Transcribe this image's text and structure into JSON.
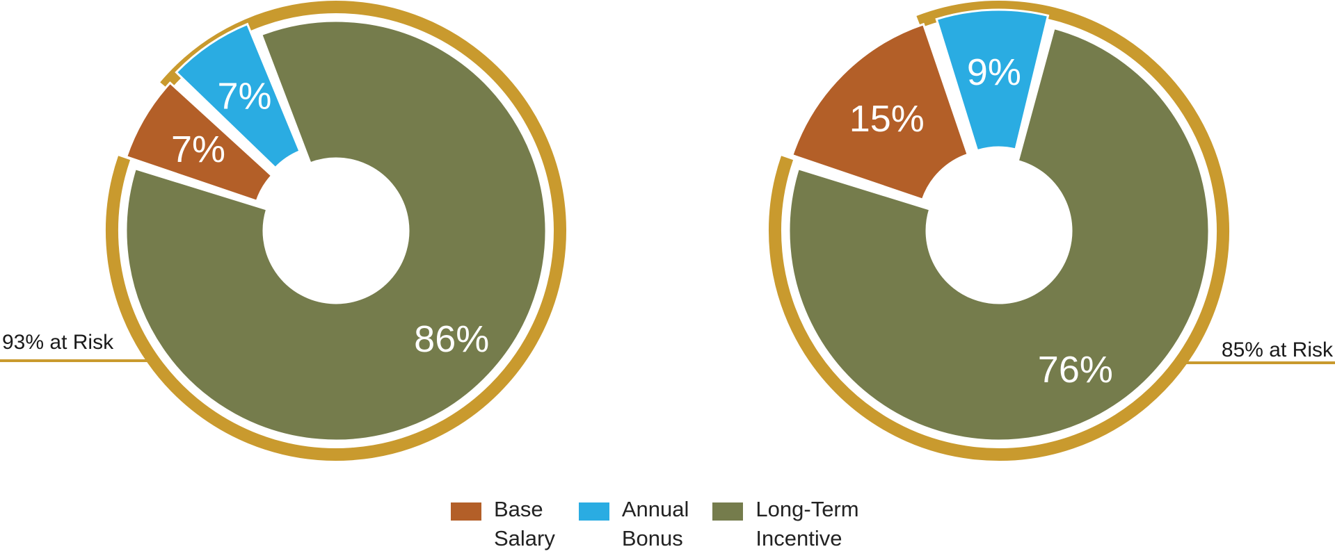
{
  "chart_data": [
    {
      "type": "pie",
      "variant": "donut",
      "categories": [
        "Base Salary",
        "Annual Bonus",
        "Long-Term Incentive"
      ],
      "values": [
        7,
        7,
        86
      ],
      "labels": [
        "7%",
        "7%",
        "86%"
      ],
      "at_risk_label": "93% at Risk",
      "at_risk_value": 93,
      "at_risk_label_side": "left"
    },
    {
      "type": "pie",
      "variant": "donut",
      "categories": [
        "Base Salary",
        "Annual Bonus",
        "Long-Term Incentive"
      ],
      "values": [
        15,
        9,
        76
      ],
      "labels": [
        "15%",
        "9%",
        "76%"
      ],
      "at_risk_label": "85% at Risk",
      "at_risk_value": 85,
      "at_risk_label_side": "right"
    }
  ],
  "colors": {
    "base_salary": "#B35F28",
    "annual_bonus": "#2AACE2",
    "long_term_incentive": "#757C4C",
    "at_risk_arc": "#C99A2E"
  },
  "legend": {
    "position": "bottom-center",
    "items": [
      {
        "label": "Base\nSalary",
        "color": "#B35F28"
      },
      {
        "label": "Annual\nBonus",
        "color": "#2AACE2"
      },
      {
        "label": "Long-Term\nIncentive",
        "color": "#757C4C"
      }
    ]
  }
}
